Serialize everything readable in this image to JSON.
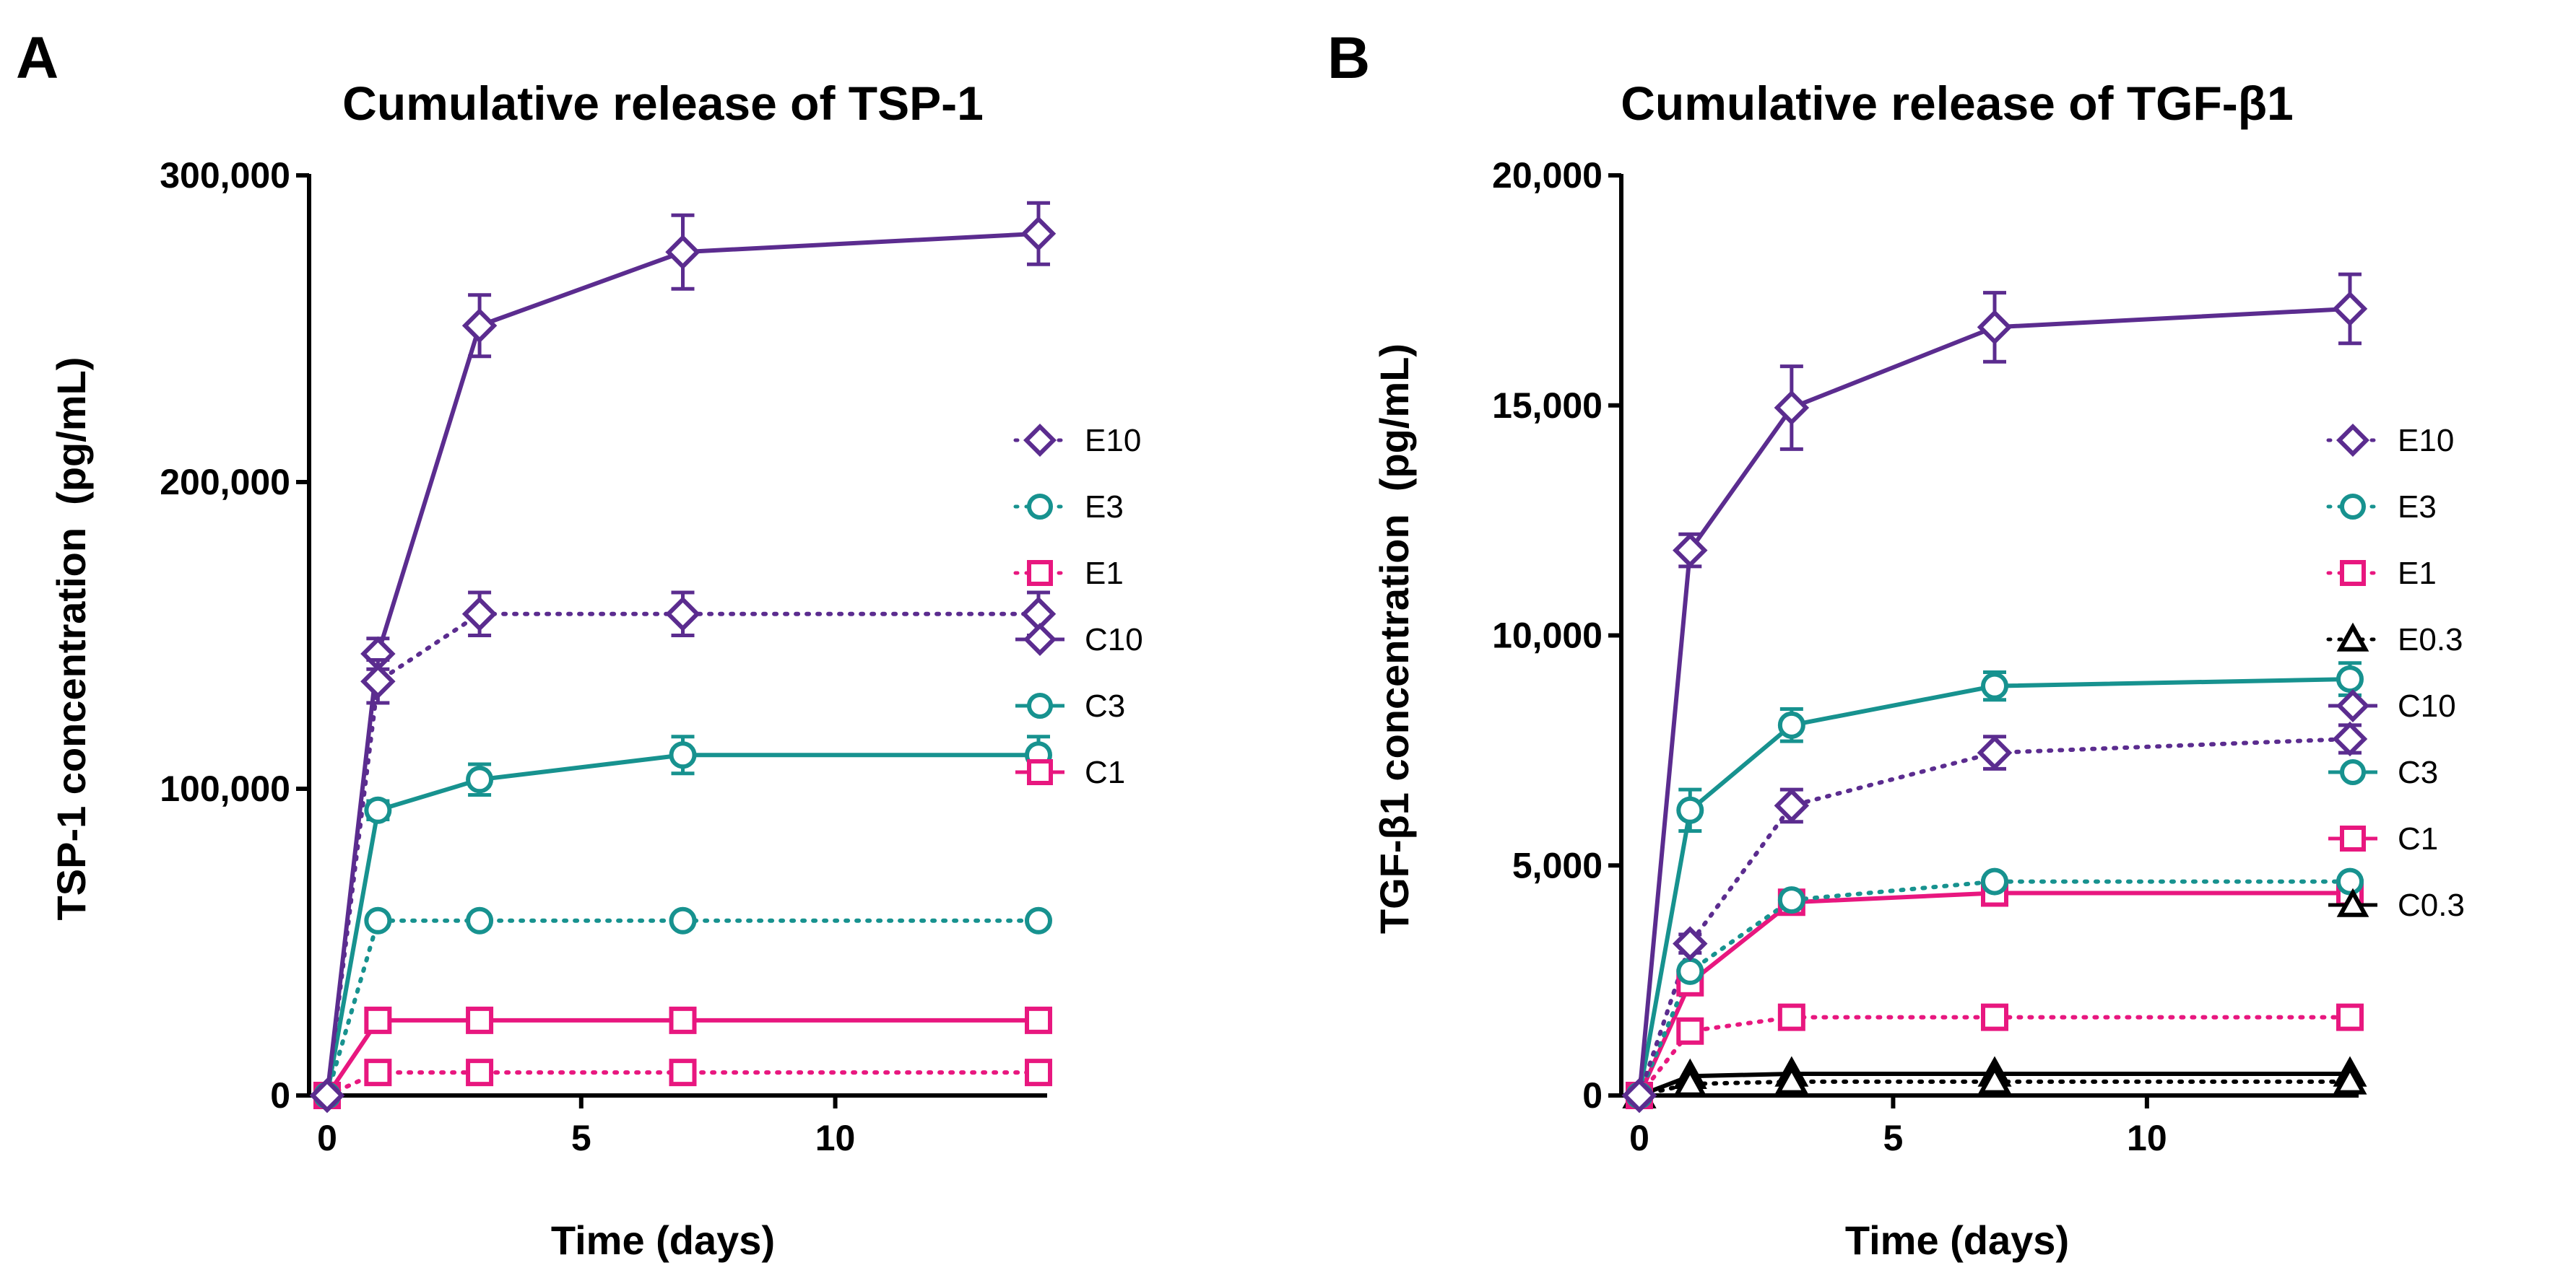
{
  "chart_data": [
    {
      "type": "line",
      "panel": "A",
      "title": "Cumulative release of TSP-1",
      "xlabel": "Time (days)",
      "ylabel": "TSP-1 concentration  (pg/mL)",
      "xlim": [
        0,
        14
      ],
      "ylim": [
        0,
        300000
      ],
      "x_ticks": [
        0,
        5,
        10
      ],
      "x_tick_labels": [
        "0",
        "5",
        "10"
      ],
      "y_ticks": [
        0,
        100000,
        200000,
        300000
      ],
      "y_tick_labels": [
        "0",
        "100,000",
        "200,000",
        "300,000"
      ],
      "legend_position": "right",
      "x": [
        0,
        1,
        3,
        7,
        14
      ],
      "series": [
        {
          "name": "E10",
          "color": "#5b2c8f",
          "marker": "diamond",
          "dashed": true,
          "values": [
            0,
            135000,
            157000,
            157000,
            157000
          ],
          "errors": [
            0,
            7000,
            7000,
            7000,
            7000
          ]
        },
        {
          "name": "E3",
          "color": "#17928f",
          "marker": "circle",
          "dashed": true,
          "values": [
            0,
            57000,
            57000,
            57000,
            57000
          ],
          "errors": [
            0,
            0,
            0,
            0,
            0
          ]
        },
        {
          "name": "E1",
          "color": "#e8177f",
          "marker": "square",
          "dashed": true,
          "values": [
            0,
            7500,
            7500,
            7500,
            7500
          ],
          "errors": [
            0,
            0,
            0,
            0,
            0
          ]
        },
        {
          "name": "C10",
          "color": "#5b2c8f",
          "marker": "diamond",
          "dashed": false,
          "values": [
            0,
            144000,
            251000,
            275000,
            281000
          ],
          "errors": [
            0,
            5000,
            10000,
            12000,
            10000
          ]
        },
        {
          "name": "C3",
          "color": "#17928f",
          "marker": "circle",
          "dashed": false,
          "values": [
            0,
            93000,
            103000,
            111000,
            111000
          ],
          "errors": [
            0,
            3000,
            5000,
            6000,
            6000
          ]
        },
        {
          "name": "C1",
          "color": "#e8177f",
          "marker": "square",
          "dashed": false,
          "values": [
            0,
            24500,
            24500,
            24500,
            24500
          ],
          "errors": [
            0,
            0,
            0,
            0,
            0
          ]
        }
      ]
    },
    {
      "type": "line",
      "panel": "B",
      "title": "Cumulative release of TGF-β1",
      "xlabel": "Time (days)",
      "ylabel": "TGF-β1 concentration  (pg/mL)",
      "xlim": [
        0,
        14
      ],
      "ylim": [
        0,
        20000
      ],
      "x_ticks": [
        0,
        5,
        10
      ],
      "x_tick_labels": [
        "0",
        "5",
        "10"
      ],
      "y_ticks": [
        0,
        5000,
        10000,
        15000,
        20000
      ],
      "y_tick_labels": [
        "0",
        "5,000",
        "10,000",
        "15,000",
        "20,000"
      ],
      "legend_position": "right",
      "x": [
        0,
        1,
        3,
        7,
        14
      ],
      "series": [
        {
          "name": "E10",
          "color": "#5b2c8f",
          "marker": "diamond",
          "dashed": true,
          "values": [
            0,
            3300,
            6300,
            7450,
            7750
          ],
          "errors": [
            0,
            200,
            350,
            350,
            300
          ]
        },
        {
          "name": "E3",
          "color": "#17928f",
          "marker": "circle",
          "dashed": true,
          "values": [
            0,
            2700,
            4250,
            4650,
            4650
          ],
          "errors": [
            0,
            0,
            0,
            0,
            0
          ]
        },
        {
          "name": "E1",
          "color": "#e8177f",
          "marker": "square",
          "dashed": true,
          "values": [
            0,
            1400,
            1700,
            1700,
            1700
          ],
          "errors": [
            0,
            0,
            0,
            0,
            0
          ]
        },
        {
          "name": "E0.3",
          "color": "#000000",
          "marker": "triangle",
          "dashed": true,
          "values": [
            0,
            250,
            300,
            300,
            300
          ],
          "errors": [
            0,
            0,
            0,
            0,
            0
          ]
        },
        {
          "name": "C10",
          "color": "#5b2c8f",
          "marker": "diamond",
          "dashed": false,
          "values": [
            0,
            11850,
            14950,
            16700,
            17100
          ],
          "errors": [
            0,
            350,
            900,
            750,
            750
          ]
        },
        {
          "name": "C3",
          "color": "#17928f",
          "marker": "circle",
          "dashed": false,
          "values": [
            0,
            6200,
            8050,
            8900,
            9050
          ],
          "errors": [
            0,
            450,
            350,
            300,
            350
          ]
        },
        {
          "name": "C1",
          "color": "#e8177f",
          "marker": "square",
          "dashed": false,
          "values": [
            0,
            2450,
            4200,
            4400,
            4400
          ],
          "errors": [
            0,
            150,
            0,
            0,
            0
          ]
        },
        {
          "name": "C0.3",
          "color": "#000000",
          "marker": "triangle",
          "dashed": false,
          "values": [
            0,
            420,
            470,
            470,
            470
          ],
          "errors": [
            0,
            0,
            0,
            0,
            0
          ]
        }
      ]
    }
  ]
}
